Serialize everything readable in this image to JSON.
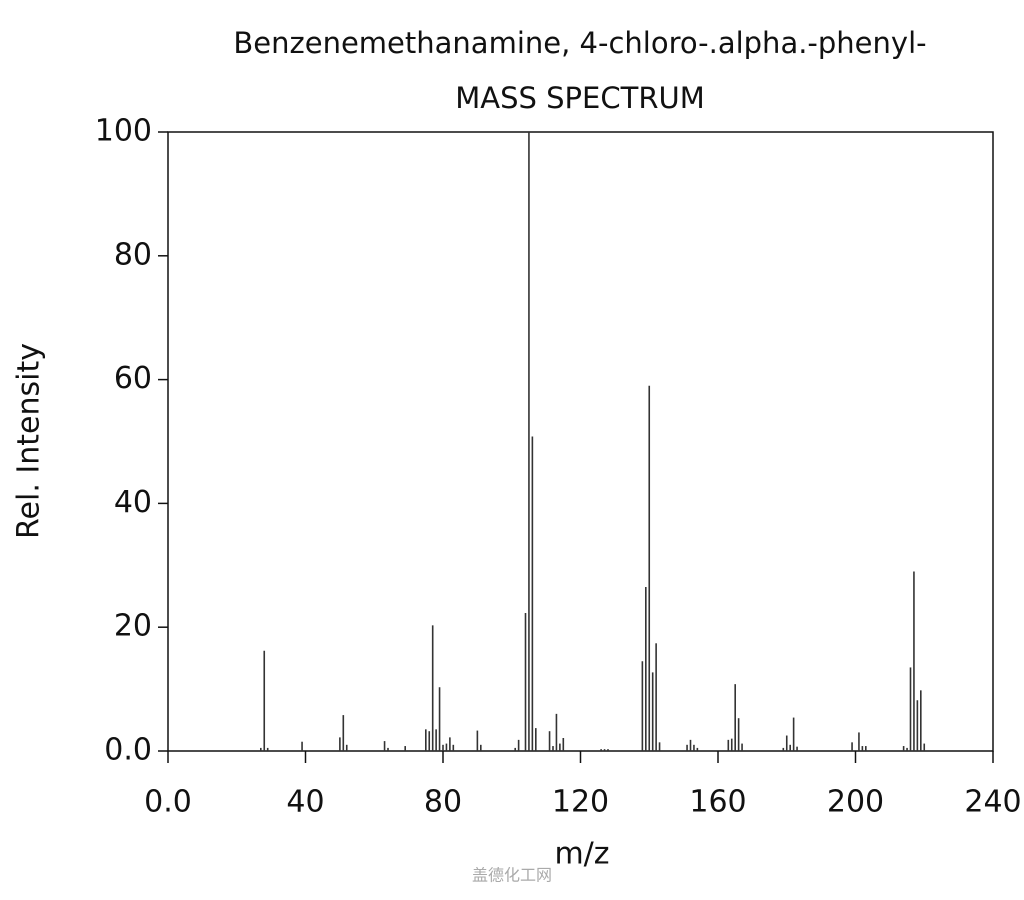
{
  "chart_data": {
    "type": "bar",
    "title": "Benzenemethanamine, 4-chloro-.alpha.-phenyl-",
    "subtitle": "MASS SPECTRUM",
    "x_label": "m/z",
    "y_label": "Rel. Intensity",
    "watermark": "盖德化工网",
    "color": "#333333",
    "x": [
      27,
      28,
      29,
      39,
      50,
      51,
      52,
      63,
      64,
      69,
      75,
      76,
      77,
      78,
      79,
      80,
      81,
      82,
      83,
      90,
      91,
      101,
      102,
      104,
      105,
      106,
      107,
      111,
      112,
      113,
      114,
      115,
      126,
      127,
      128,
      138,
      139,
      140,
      141,
      142,
      143,
      151,
      152,
      153,
      154,
      163,
      164,
      165,
      166,
      167,
      179,
      180,
      181,
      182,
      183,
      199,
      201,
      202,
      203,
      214,
      215,
      216,
      217,
      218,
      219,
      220
    ],
    "values": [
      0.5,
      16.2,
      0.5,
      1.5,
      2.2,
      5.8,
      1,
      1.6,
      0.5,
      0.8,
      3.5,
      3.2,
      20.3,
      3.5,
      10.3,
      1,
      1.2,
      2.2,
      1,
      3.3,
      1,
      0.5,
      1.8,
      22.3,
      100,
      50.8,
      3.7,
      3.2,
      0.8,
      6,
      1.2,
      2.1,
      0.3,
      0.3,
      0.3,
      14.5,
      26.5,
      59,
      12.7,
      17.4,
      1.4,
      1,
      1.8,
      1,
      0.5,
      1.8,
      2,
      10.8,
      5.3,
      1.2,
      0.5,
      2.5,
      1,
      5.4,
      0.7,
      1.4,
      3,
      0.8,
      0.8,
      0.8,
      0.5,
      13.5,
      29,
      8.2,
      9.8,
      1.2
    ],
    "xlim": [
      0,
      240
    ],
    "xticks": [
      {
        "value": 0,
        "label": "0.0"
      },
      40,
      80,
      120,
      160,
      200,
      240
    ],
    "ylim": [
      0,
      100
    ],
    "yticks": [
      {
        "value": 0,
        "label": "0.0"
      },
      20,
      40,
      60,
      80,
      100
    ]
  }
}
